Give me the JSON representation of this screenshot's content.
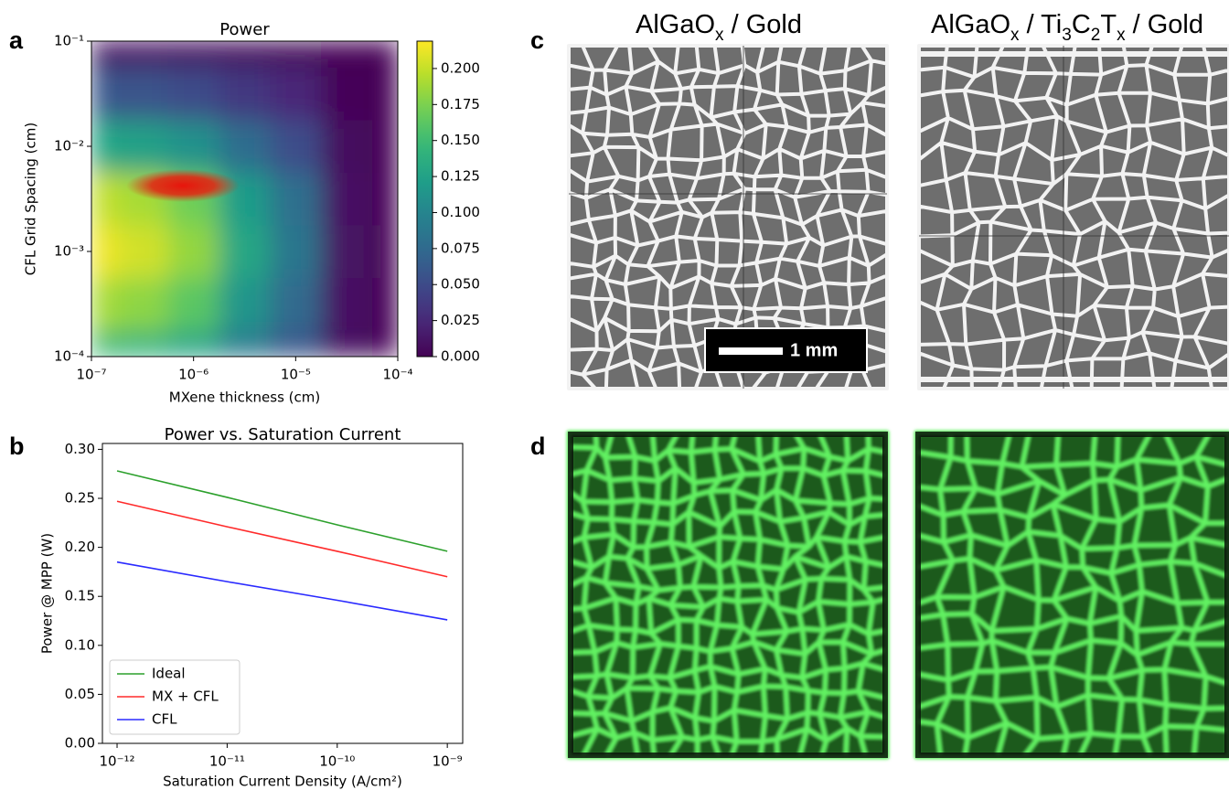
{
  "chart_data": [
    {
      "type": "contour",
      "title": "Power",
      "xlabel": "MXene thickness (cm)",
      "ylabel": "CFL Grid Spacing (cm)",
      "xscale": "log",
      "yscale": "log",
      "x": [
        1e-07,
        3.2e-07,
        1e-06,
        3.2e-06,
        1e-05,
        3.2e-05,
        0.0001
      ],
      "y": [
        0.0001,
        0.00032,
        0.001,
        0.0032,
        0.01,
        0.032,
        0.1
      ],
      "z": [
        [
          0.15,
          0.143,
          0.128,
          0.09,
          0.06,
          0.008,
          0.0
        ],
        [
          0.19,
          0.181,
          0.162,
          0.114,
          0.076,
          0.01,
          0.0
        ],
        [
          0.215,
          0.204,
          0.183,
          0.129,
          0.086,
          0.011,
          0.0
        ],
        [
          0.2,
          0.19,
          0.17,
          0.12,
          0.08,
          0.01,
          0.0
        ],
        [
          0.13,
          0.124,
          0.111,
          0.078,
          0.052,
          0.007,
          0.0
        ],
        [
          0.06,
          0.057,
          0.051,
          0.036,
          0.024,
          0.003,
          0.0
        ],
        [
          0.01,
          0.01,
          0.009,
          0.006,
          0.004,
          0.001,
          0.0
        ]
      ],
      "xlim": [
        1e-07,
        0.0001
      ],
      "ylim": [
        0.0001,
        0.1
      ],
      "xticks": [
        {
          "value": 1e-07,
          "label": "10⁻⁷"
        },
        {
          "value": 1e-06,
          "label": "10⁻⁶"
        },
        {
          "value": 1e-05,
          "label": "10⁻⁵"
        },
        {
          "value": 0.0001,
          "label": "10⁻⁴"
        }
      ],
      "yticks": [
        {
          "value": 0.0001,
          "label": "10⁻⁴"
        },
        {
          "value": 0.001,
          "label": "10⁻³"
        },
        {
          "value": 0.01,
          "label": "10⁻²"
        },
        {
          "value": 0.1,
          "label": "10⁻¹"
        }
      ],
      "colormap": "viridis",
      "clim": [
        0,
        0.219
      ],
      "cticks": [
        {
          "value": 0,
          "label": "0.000"
        },
        {
          "value": 0.025,
          "label": "0.025"
        },
        {
          "value": 0.05,
          "label": "0.050"
        },
        {
          "value": 0.075,
          "label": "0.075"
        },
        {
          "value": 0.1,
          "label": "0.100"
        },
        {
          "value": 0.125,
          "label": "0.125"
        },
        {
          "value": 0.15,
          "label": "0.150"
        },
        {
          "value": 0.175,
          "label": "0.175"
        },
        {
          "value": 0.2,
          "label": "0.200"
        }
      ]
    },
    {
      "type": "line",
      "title": "Power vs. Saturation Current",
      "xlabel": "Saturation Current Density (A/cm²)",
      "ylabel": "Power @ MPP (W)",
      "xscale": "log",
      "x": [
        1e-12,
        1e-11,
        1e-10,
        1e-09
      ],
      "series": [
        {
          "name": "Ideal",
          "color": "#2ca02c",
          "values": [
            0.278,
            0.251,
            0.223,
            0.196
          ]
        },
        {
          "name": "MX + CFL",
          "color": "#ff2a2a",
          "values": [
            0.247,
            0.221,
            0.196,
            0.17
          ]
        },
        {
          "name": "CFL",
          "color": "#2a2aff",
          "values": [
            0.185,
            0.165,
            0.146,
            0.126
          ]
        }
      ],
      "xlim": [
        7.36e-13,
        1.38e-09
      ],
      "ylim": [
        0,
        0.306
      ],
      "xticks": [
        {
          "value": 1e-12,
          "label": "10⁻¹²"
        },
        {
          "value": 1e-11,
          "label": "10⁻¹¹"
        },
        {
          "value": 1e-10,
          "label": "10⁻¹⁰"
        },
        {
          "value": 1e-09,
          "label": "10⁻⁹"
        }
      ],
      "yticks": [
        {
          "value": 0,
          "label": "0.00"
        },
        {
          "value": 0.05,
          "label": "0.05"
        },
        {
          "value": 0.1,
          "label": "0.10"
        },
        {
          "value": 0.15,
          "label": "0.15"
        },
        {
          "value": 0.2,
          "label": "0.20"
        },
        {
          "value": 0.25,
          "label": "0.25"
        },
        {
          "value": 0.3,
          "label": "0.30"
        }
      ],
      "legend": "lower left"
    }
  ],
  "figure": {
    "panel_labels": [
      "a",
      "b",
      "c",
      "d"
    ],
    "image_titles": [
      [
        {
          "text": "AlGaO"
        },
        {
          "text": "x",
          "sub": true
        },
        {
          "text": " / Gold"
        }
      ],
      [
        {
          "text": "AlGaO"
        },
        {
          "text": "x",
          "sub": true
        },
        {
          "text": " / Ti"
        },
        {
          "text": "3",
          "sub": true
        },
        {
          "text": "C"
        },
        {
          "text": "2",
          "sub": true
        },
        {
          "text": "T"
        },
        {
          "text": "x",
          "sub": true
        },
        {
          "text": " / Gold"
        }
      ]
    ],
    "scale_bar": "1 mm"
  }
}
